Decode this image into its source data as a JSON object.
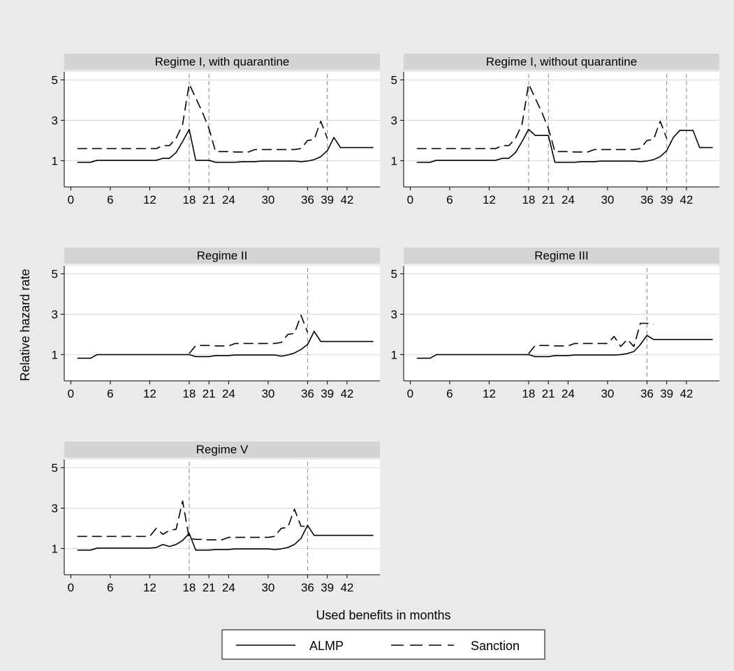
{
  "figure": {
    "ylabel": "Relative hazard rate",
    "xlabel": "Used benefits in months",
    "legend": [
      {
        "name": "ALMP",
        "style": "solid"
      },
      {
        "name": "Sanction",
        "style": "dashed"
      }
    ]
  },
  "chart_data": [
    {
      "type": "line",
      "title": "Regime I, with quarantine",
      "xticks": [
        0,
        6,
        12,
        18,
        21,
        24,
        30,
        36,
        39,
        42
      ],
      "yticks": [
        1,
        3,
        5
      ],
      "xlim": [
        -1,
        47
      ],
      "ylim": [
        -0.3,
        5.4
      ],
      "vlines": [
        18,
        21,
        39
      ],
      "series": [
        {
          "name": "ALMP",
          "style": "solid",
          "x": [
            1,
            2,
            3,
            4,
            5,
            6,
            7,
            8,
            9,
            10,
            11,
            12,
            13,
            14,
            15,
            16,
            17,
            18,
            19,
            20,
            21,
            22,
            23,
            24,
            25,
            26,
            27,
            28,
            29,
            30,
            31,
            32,
            33,
            34,
            35,
            36,
            37,
            38,
            39,
            40,
            41,
            42,
            43,
            44,
            45,
            46
          ],
          "y": [
            0.92,
            0.92,
            0.92,
            1.02,
            1.02,
            1.02,
            1.02,
            1.02,
            1.02,
            1.02,
            1.02,
            1.02,
            1.02,
            1.12,
            1.12,
            1.4,
            1.95,
            2.55,
            1.02,
            1.02,
            1.02,
            0.92,
            0.92,
            0.92,
            0.92,
            0.95,
            0.95,
            0.95,
            0.98,
            0.98,
            0.98,
            0.98,
            0.98,
            0.98,
            0.95,
            0.98,
            1.05,
            1.2,
            1.5,
            2.15,
            1.65,
            1.65,
            1.65,
            1.65,
            1.65,
            1.65
          ]
        },
        {
          "name": "Sanction",
          "style": "dashed",
          "x": [
            1,
            2,
            3,
            4,
            5,
            6,
            7,
            8,
            9,
            10,
            11,
            12,
            13,
            14,
            15,
            16,
            17,
            18,
            19,
            20,
            21,
            22,
            23,
            24,
            25,
            26,
            27,
            28,
            29,
            30,
            31,
            32,
            33,
            34,
            35,
            36,
            37,
            38,
            39
          ],
          "y": [
            1.6,
            1.6,
            1.6,
            1.6,
            1.6,
            1.6,
            1.6,
            1.6,
            1.6,
            1.6,
            1.6,
            1.6,
            1.6,
            1.75,
            1.75,
            2.1,
            2.8,
            4.8,
            4.1,
            3.4,
            2.6,
            1.45,
            1.45,
            1.45,
            1.43,
            1.43,
            1.43,
            1.55,
            1.55,
            1.55,
            1.55,
            1.55,
            1.55,
            1.55,
            1.6,
            2.0,
            2.05,
            2.95,
            2.1
          ]
        }
      ]
    },
    {
      "type": "line",
      "title": "Regime I, without quarantine",
      "xticks": [
        0,
        6,
        12,
        18,
        21,
        24,
        30,
        36,
        39,
        42
      ],
      "yticks": [
        1,
        3,
        5
      ],
      "xlim": [
        -1,
        47
      ],
      "ylim": [
        -0.3,
        5.4
      ],
      "vlines": [
        18,
        21,
        39,
        42
      ],
      "series": [
        {
          "name": "ALMP",
          "style": "solid",
          "x": [
            1,
            2,
            3,
            4,
            5,
            6,
            7,
            8,
            9,
            10,
            11,
            12,
            13,
            14,
            15,
            16,
            17,
            18,
            19,
            20,
            21,
            22,
            23,
            24,
            25,
            26,
            27,
            28,
            29,
            30,
            31,
            32,
            33,
            34,
            35,
            36,
            37,
            38,
            39,
            40,
            41,
            42,
            43,
            44,
            45,
            46
          ],
          "y": [
            0.92,
            0.92,
            0.92,
            1.02,
            1.02,
            1.02,
            1.02,
            1.02,
            1.02,
            1.02,
            1.02,
            1.02,
            1.02,
            1.12,
            1.12,
            1.4,
            1.95,
            2.55,
            2.25,
            2.25,
            2.25,
            0.92,
            0.92,
            0.92,
            0.92,
            0.95,
            0.95,
            0.95,
            0.98,
            0.98,
            0.98,
            0.98,
            0.98,
            0.98,
            0.95,
            0.98,
            1.05,
            1.2,
            1.5,
            2.15,
            2.5,
            2.5,
            2.5,
            1.65,
            1.65,
            1.65
          ]
        },
        {
          "name": "Sanction",
          "style": "dashed",
          "x": [
            1,
            2,
            3,
            4,
            5,
            6,
            7,
            8,
            9,
            10,
            11,
            12,
            13,
            14,
            15,
            16,
            17,
            18,
            19,
            20,
            21,
            22,
            23,
            24,
            25,
            26,
            27,
            28,
            29,
            30,
            31,
            32,
            33,
            34,
            35,
            36,
            37,
            38,
            39
          ],
          "y": [
            1.6,
            1.6,
            1.6,
            1.6,
            1.6,
            1.6,
            1.6,
            1.6,
            1.6,
            1.6,
            1.6,
            1.6,
            1.6,
            1.75,
            1.75,
            2.1,
            2.8,
            4.8,
            4.1,
            3.4,
            2.6,
            1.45,
            1.45,
            1.45,
            1.43,
            1.43,
            1.43,
            1.55,
            1.55,
            1.55,
            1.55,
            1.55,
            1.55,
            1.55,
            1.6,
            2.0,
            2.05,
            2.95,
            2.1
          ]
        }
      ]
    },
    {
      "type": "line",
      "title": "Regime II",
      "xticks": [
        0,
        6,
        12,
        18,
        21,
        24,
        30,
        36,
        39,
        42
      ],
      "yticks": [
        1,
        3,
        5
      ],
      "xlim": [
        -1,
        47
      ],
      "ylim": [
        -0.3,
        5.4
      ],
      "vlines": [
        36
      ],
      "series": [
        {
          "name": "ALMP",
          "style": "solid",
          "x": [
            1,
            2,
            3,
            4,
            5,
            6,
            7,
            8,
            9,
            10,
            11,
            12,
            13,
            14,
            15,
            16,
            17,
            18,
            19,
            20,
            21,
            22,
            23,
            24,
            25,
            26,
            27,
            28,
            29,
            30,
            31,
            32,
            33,
            34,
            35,
            36,
            37,
            38,
            39,
            40,
            41,
            42,
            43,
            44,
            45,
            46
          ],
          "y": [
            0.82,
            0.82,
            0.82,
            1.0,
            1.0,
            1.0,
            1.0,
            1.0,
            1.0,
            1.0,
            1.0,
            1.0,
            1.0,
            1.0,
            1.0,
            1.0,
            1.0,
            1.0,
            0.9,
            0.9,
            0.9,
            0.95,
            0.95,
            0.95,
            0.98,
            0.98,
            0.98,
            0.98,
            0.98,
            0.98,
            0.98,
            0.92,
            0.98,
            1.08,
            1.25,
            1.5,
            2.15,
            1.65,
            1.65,
            1.65,
            1.65,
            1.65,
            1.65,
            1.65,
            1.65,
            1.65
          ]
        },
        {
          "name": "Sanction",
          "style": "dashed",
          "x": [
            18,
            19,
            20,
            21,
            22,
            23,
            24,
            25,
            26,
            27,
            28,
            29,
            30,
            31,
            32,
            33,
            34,
            35,
            36
          ],
          "y": [
            1.05,
            1.45,
            1.45,
            1.45,
            1.43,
            1.43,
            1.43,
            1.55,
            1.55,
            1.55,
            1.55,
            1.55,
            1.55,
            1.55,
            1.6,
            2.0,
            2.05,
            2.95,
            2.1
          ]
        }
      ]
    },
    {
      "type": "line",
      "title": "Regime III",
      "xticks": [
        0,
        6,
        12,
        18,
        21,
        24,
        30,
        36,
        39,
        42
      ],
      "yticks": [
        1,
        3,
        5
      ],
      "xlim": [
        -1,
        47
      ],
      "ylim": [
        -0.3,
        5.4
      ],
      "vlines": [
        36
      ],
      "series": [
        {
          "name": "ALMP",
          "style": "solid",
          "x": [
            1,
            2,
            3,
            4,
            5,
            6,
            7,
            8,
            9,
            10,
            11,
            12,
            13,
            14,
            15,
            16,
            17,
            18,
            19,
            20,
            21,
            22,
            23,
            24,
            25,
            26,
            27,
            28,
            29,
            30,
            31,
            32,
            33,
            34,
            35,
            36,
            37,
            38,
            39,
            40,
            41,
            42,
            43,
            44,
            45,
            46
          ],
          "y": [
            0.82,
            0.82,
            0.82,
            1.0,
            1.0,
            1.0,
            1.0,
            1.0,
            1.0,
            1.0,
            1.0,
            1.0,
            1.0,
            1.0,
            1.0,
            1.0,
            1.0,
            1.0,
            0.9,
            0.9,
            0.9,
            0.95,
            0.95,
            0.95,
            0.98,
            0.98,
            0.98,
            0.98,
            0.98,
            0.98,
            0.98,
            1.0,
            1.05,
            1.15,
            1.5,
            1.95,
            1.75,
            1.75,
            1.75,
            1.75,
            1.75,
            1.75,
            1.75,
            1.75,
            1.75,
            1.75
          ]
        },
        {
          "name": "Sanction",
          "style": "dashed",
          "x": [
            18,
            19,
            20,
            21,
            22,
            23,
            24,
            25,
            26,
            27,
            28,
            29,
            30,
            31,
            32,
            33,
            34,
            35,
            36,
            37
          ],
          "y": [
            1.05,
            1.45,
            1.45,
            1.45,
            1.43,
            1.43,
            1.43,
            1.55,
            1.55,
            1.55,
            1.55,
            1.55,
            1.55,
            1.9,
            1.4,
            1.75,
            1.4,
            2.55,
            2.55,
            2.5
          ]
        }
      ]
    },
    {
      "type": "line",
      "title": "Regime V",
      "xticks": [
        0,
        6,
        12,
        18,
        21,
        24,
        30,
        36,
        39,
        42
      ],
      "yticks": [
        1,
        3,
        5
      ],
      "xlim": [
        -1,
        47
      ],
      "ylim": [
        -0.3,
        5.4
      ],
      "vlines": [
        18,
        36
      ],
      "series": [
        {
          "name": "ALMP",
          "style": "solid",
          "x": [
            1,
            2,
            3,
            4,
            5,
            6,
            7,
            8,
            9,
            10,
            11,
            12,
            13,
            14,
            15,
            16,
            17,
            18,
            19,
            20,
            21,
            22,
            23,
            24,
            25,
            26,
            27,
            28,
            29,
            30,
            31,
            32,
            33,
            34,
            35,
            36,
            37,
            38,
            39,
            40,
            41,
            42,
            43,
            44,
            45,
            46
          ],
          "y": [
            0.92,
            0.92,
            0.92,
            1.02,
            1.02,
            1.02,
            1.02,
            1.02,
            1.02,
            1.02,
            1.02,
            1.02,
            1.05,
            1.2,
            1.1,
            1.2,
            1.4,
            1.75,
            0.92,
            0.92,
            0.92,
            0.95,
            0.95,
            0.95,
            0.98,
            0.98,
            0.98,
            0.98,
            0.98,
            0.98,
            0.95,
            0.98,
            1.05,
            1.2,
            1.5,
            2.15,
            1.65,
            1.65,
            1.65,
            1.65,
            1.65,
            1.65,
            1.65,
            1.65,
            1.65,
            1.65
          ]
        },
        {
          "name": "Sanction",
          "style": "dashed",
          "x": [
            1,
            2,
            3,
            4,
            5,
            6,
            7,
            8,
            9,
            10,
            11,
            12,
            13,
            14,
            15,
            16,
            17,
            18,
            19,
            20,
            21,
            22,
            23,
            24,
            25,
            26,
            27,
            28,
            29,
            30,
            31,
            32,
            33,
            34,
            35,
            36
          ],
          "y": [
            1.6,
            1.6,
            1.6,
            1.6,
            1.6,
            1.6,
            1.6,
            1.6,
            1.6,
            1.6,
            1.6,
            1.6,
            2.0,
            1.7,
            1.9,
            1.95,
            3.35,
            1.5,
            1.45,
            1.45,
            1.43,
            1.43,
            1.43,
            1.55,
            1.55,
            1.55,
            1.55,
            1.55,
            1.55,
            1.55,
            1.6,
            2.0,
            2.05,
            2.95,
            2.1,
            2.1
          ]
        }
      ]
    }
  ]
}
